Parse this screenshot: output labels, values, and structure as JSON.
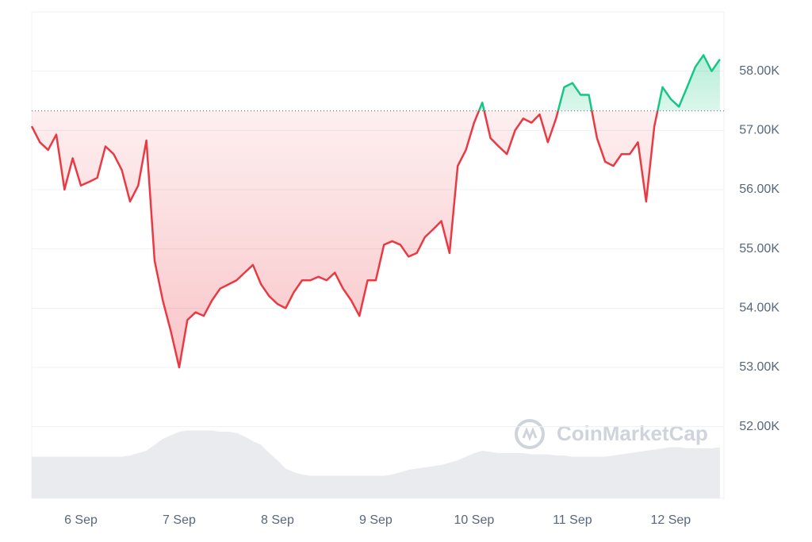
{
  "chart_data": {
    "type": "line",
    "watermark": "CoinMarketCap",
    "categories": [
      null,
      null,
      null,
      null,
      null,
      null,
      "6 Sep",
      null,
      null,
      null,
      null,
      null,
      null,
      null,
      null,
      null,
      null,
      null,
      "7 Sep",
      null,
      null,
      null,
      null,
      null,
      null,
      null,
      null,
      null,
      null,
      null,
      "8 Sep",
      null,
      null,
      null,
      null,
      null,
      null,
      null,
      null,
      null,
      null,
      null,
      "9 Sep",
      null,
      null,
      null,
      null,
      null,
      null,
      null,
      null,
      null,
      null,
      null,
      "10 Sep",
      null,
      null,
      null,
      null,
      null,
      null,
      null,
      null,
      null,
      null,
      null,
      "11 Sep",
      null,
      null,
      null,
      null,
      null,
      null,
      null,
      null,
      null,
      null,
      null,
      "12 Sep",
      null,
      null,
      null,
      null,
      null,
      null
    ],
    "values": [
      57070,
      56800,
      56670,
      56930,
      56000,
      56530,
      56070,
      56130,
      56200,
      56730,
      56600,
      56330,
      55800,
      56070,
      56830,
      54800,
      54130,
      53600,
      53000,
      53800,
      53930,
      53870,
      54130,
      54330,
      54400,
      54470,
      54600,
      54730,
      54400,
      54200,
      54070,
      54000,
      54270,
      54470,
      54470,
      54530,
      54470,
      54600,
      54330,
      54130,
      53870,
      54470,
      54470,
      55070,
      55130,
      55070,
      54870,
      54930,
      55200,
      55330,
      55470,
      54930,
      56400,
      56670,
      57130,
      57470,
      56870,
      56730,
      56600,
      57000,
      57200,
      57130,
      57270,
      56800,
      57200,
      57730,
      57800,
      57600,
      57600,
      56870,
      56470,
      56400,
      56600,
      56600,
      56800,
      55800,
      57070,
      57730,
      57530,
      57400,
      57730,
      58070,
      58270,
      58000,
      58200
    ],
    "baseline": 57330,
    "up_color": "#16c784",
    "down_color": "#ea3943",
    "volume": [
      35,
      35,
      35,
      35,
      35,
      35,
      35,
      35,
      35,
      35,
      35,
      35,
      36,
      38,
      40,
      45,
      50,
      53,
      56,
      57,
      57,
      57,
      57,
      56,
      56,
      55,
      52,
      48,
      45,
      38,
      32,
      25,
      22,
      20,
      19,
      19,
      19,
      19,
      19,
      19,
      19,
      19,
      19,
      19,
      20,
      22,
      24,
      25,
      26,
      27,
      28,
      30,
      32,
      35,
      38,
      40,
      39,
      38,
      38,
      38,
      38,
      37,
      37,
      37,
      36,
      36,
      35,
      35,
      35,
      35,
      35,
      36,
      37,
      38,
      39,
      40,
      41,
      42,
      43,
      43,
      42,
      42,
      42,
      42,
      43
    ],
    "volume_color": "#e9ebee",
    "y2lim": [
      0,
      100
    ],
    "ylim": [
      50790,
      59000
    ],
    "yticks": [
      {
        "value": 52000,
        "label": "52.00K"
      },
      {
        "value": 53000,
        "label": "53.00K"
      },
      {
        "value": 54000,
        "label": "54.00K"
      },
      {
        "value": 55000,
        "label": "55.00K"
      },
      {
        "value": 56000,
        "label": "56.00K"
      },
      {
        "value": 57000,
        "label": "57.00K"
      },
      {
        "value": 58000,
        "label": "58.00K"
      }
    ],
    "grid": true
  }
}
